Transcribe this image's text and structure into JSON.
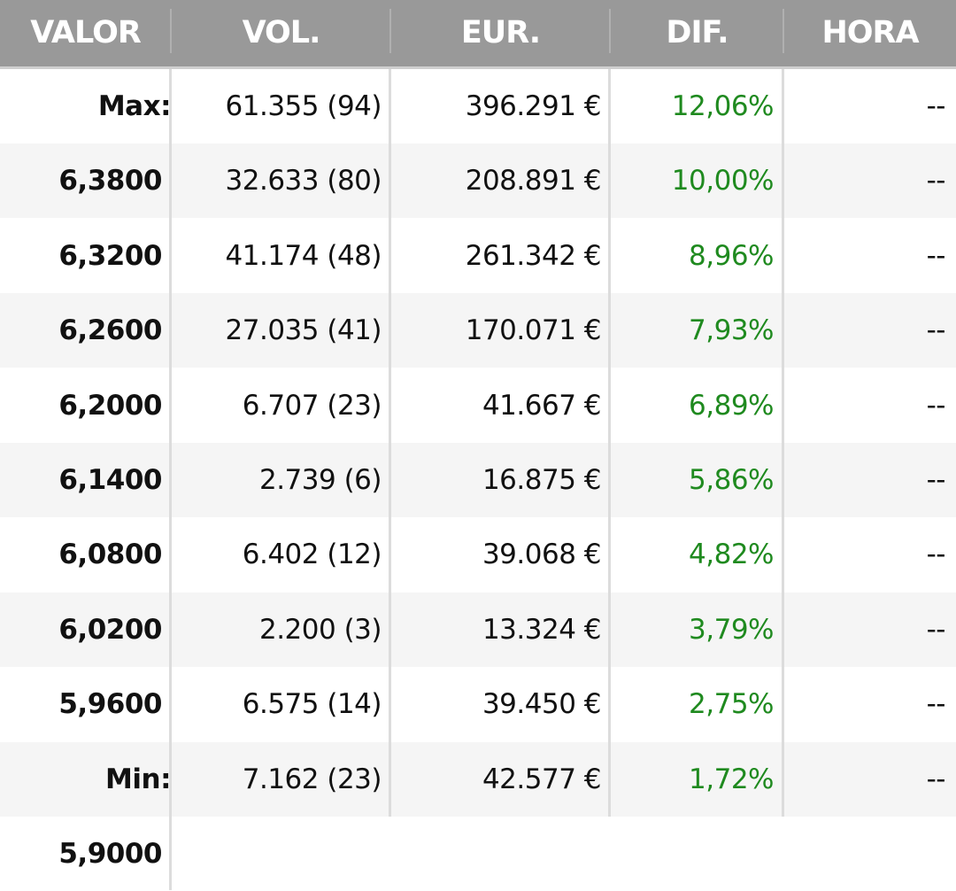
{
  "header": {
    "columns": [
      "VALOR",
      "VOL.",
      "EUR.",
      "DIF.",
      "HORA"
    ]
  },
  "colors": {
    "header_bg": "#999999",
    "positive": "#1f8a1f"
  },
  "rows": [
    {
      "valor": "Max:",
      "vol": "61.355 (94)",
      "eur": "396.291 €",
      "dif": "12,06%",
      "hora": "--"
    },
    {
      "valor": "6,3800",
      "vol": "32.633 (80)",
      "eur": "208.891 €",
      "dif": "10,00%",
      "hora": "--"
    },
    {
      "valor": "6,3200",
      "vol": "41.174 (48)",
      "eur": "261.342 €",
      "dif": "8,96%",
      "hora": "--"
    },
    {
      "valor": "6,2600",
      "vol": "27.035 (41)",
      "eur": "170.071 €",
      "dif": "7,93%",
      "hora": "--"
    },
    {
      "valor": "6,2000",
      "vol": "6.707 (23)",
      "eur": "41.667 €",
      "dif": "6,89%",
      "hora": "--"
    },
    {
      "valor": "6,1400",
      "vol": "2.739 (6)",
      "eur": "16.875 €",
      "dif": "5,86%",
      "hora": "--"
    },
    {
      "valor": "6,0800",
      "vol": "6.402 (12)",
      "eur": "39.068 €",
      "dif": "4,82%",
      "hora": "--"
    },
    {
      "valor": "6,0200",
      "vol": "2.200 (3)",
      "eur": "13.324 €",
      "dif": "3,79%",
      "hora": "--"
    },
    {
      "valor": "5,9600",
      "vol": "6.575 (14)",
      "eur": "39.450 €",
      "dif": "2,75%",
      "hora": "--"
    },
    {
      "valor": "Min:",
      "vol": "7.162 (23)",
      "eur": "42.577 €",
      "dif": "1,72%",
      "hora": "--"
    }
  ],
  "last_row": {
    "valor": "5,9000"
  }
}
